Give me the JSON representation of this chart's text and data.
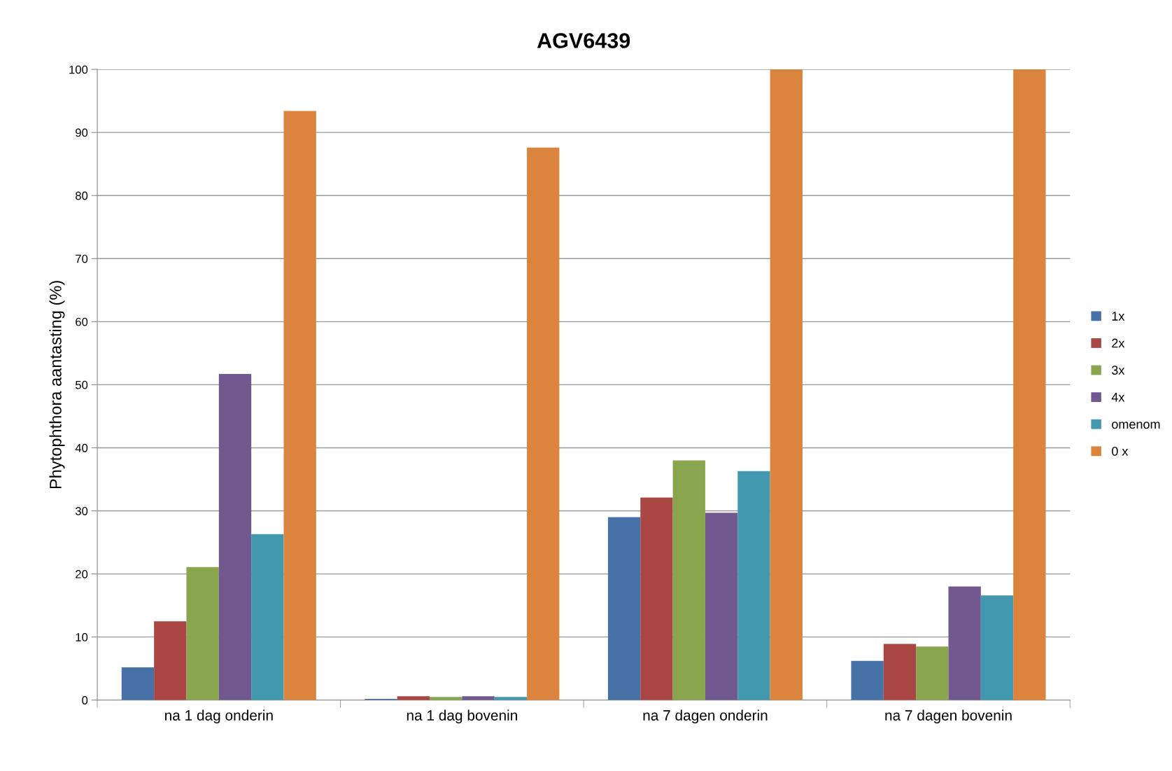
{
  "chart_data": {
    "type": "bar",
    "title": "AGV6439",
    "ylabel": "Phytophthora aantasting (%)",
    "categories": [
      "na 1 dag onderin",
      "na 1 dag bovenin",
      "na 7 dagen onderin",
      "na 7 dagen bovenin"
    ],
    "series": [
      {
        "name": "1x",
        "color": "#4672a8",
        "values": [
          5.2,
          0.2,
          29.0,
          6.2
        ]
      },
      {
        "name": "2x",
        "color": "#aa4643",
        "values": [
          12.5,
          0.6,
          32.1,
          8.9
        ]
      },
      {
        "name": "3x",
        "color": "#89a54e",
        "values": [
          21.1,
          0.5,
          38.0,
          8.5
        ]
      },
      {
        "name": "4x",
        "color": "#71588f",
        "values": [
          51.7,
          0.6,
          29.7,
          18.0
        ]
      },
      {
        "name": "omenom",
        "color": "#4198af",
        "values": [
          26.3,
          0.5,
          36.3,
          16.6
        ]
      },
      {
        "name": "0 x",
        "color": "#db843d",
        "values": [
          93.4,
          87.6,
          100,
          100
        ]
      }
    ],
    "ylim": [
      0,
      100
    ],
    "yticks": [
      0,
      10,
      20,
      30,
      40,
      50,
      60,
      70,
      80,
      90,
      100
    ],
    "grid": "y",
    "legend": "right"
  }
}
